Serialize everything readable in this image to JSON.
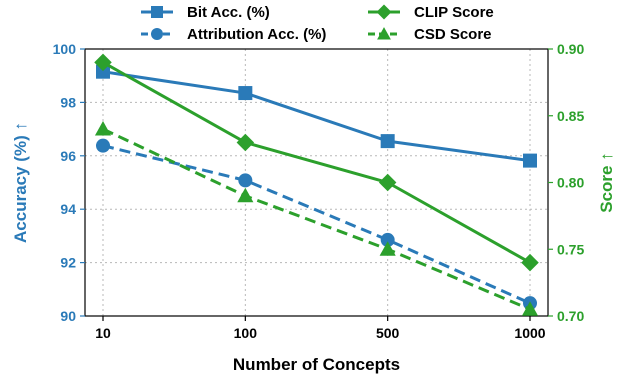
{
  "chart_data": {
    "type": "line",
    "xlabel": "Number of Concepts",
    "categories": [
      "10",
      "100",
      "500",
      "1000"
    ],
    "y_left": {
      "label": "Accuracy (%) ↑",
      "range": [
        90,
        100
      ],
      "ticks": [
        "90",
        "92",
        "94",
        "96",
        "98",
        "100"
      ],
      "color": "#2a7ab8"
    },
    "y_right": {
      "label": "Score ↑",
      "range": [
        0.7,
        0.9
      ],
      "ticks": [
        "0.70",
        "0.75",
        "0.80",
        "0.85",
        "0.90"
      ],
      "color": "#2ca02c"
    },
    "grid": true,
    "legend_position": "top",
    "series": [
      {
        "name": "Bit Acc. (%)",
        "axis": "left",
        "values": [
          99.15,
          98.35,
          96.55,
          95.82
        ],
        "color": "#2a7ab8",
        "marker": "square",
        "dash": false
      },
      {
        "name": "Attribution Acc. (%)",
        "axis": "left",
        "values": [
          96.38,
          95.08,
          92.85,
          90.48
        ],
        "color": "#2a7ab8",
        "marker": "circle",
        "dash": true
      },
      {
        "name": "CLIP Score",
        "axis": "right",
        "values": [
          0.89,
          0.83,
          0.8,
          0.74
        ],
        "color": "#2ca02c",
        "marker": "diamond",
        "dash": false
      },
      {
        "name": "CSD Score",
        "axis": "right",
        "values": [
          0.84,
          0.79,
          0.75,
          0.705
        ],
        "color": "#2ca02c",
        "marker": "triangle",
        "dash": true
      }
    ]
  }
}
